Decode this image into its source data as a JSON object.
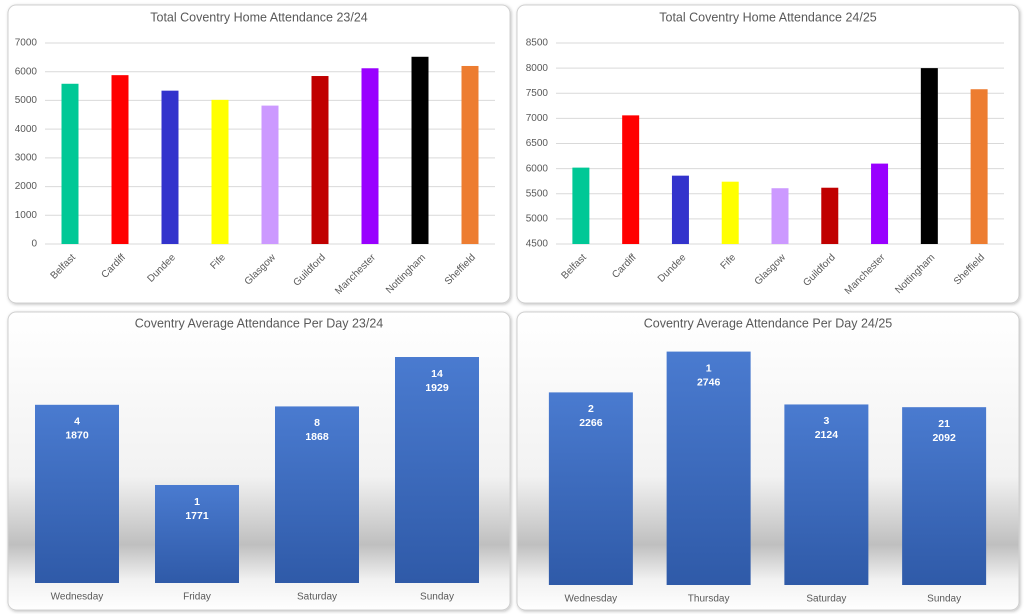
{
  "chart_data": [
    {
      "type": "bar",
      "title": "Total Coventry Home Attendance 23/24",
      "categories": [
        "Belfast",
        "Cardiff",
        "Dundee",
        "Fife",
        "Glasgow",
        "Guildford",
        "Manchester",
        "Nottingham",
        "Sheffield"
      ],
      "values": [
        5580,
        5880,
        5340,
        5020,
        4820,
        5850,
        6120,
        6520,
        6200
      ],
      "colors": [
        "#00c896",
        "#ff0000",
        "#3333cc",
        "#ffff00",
        "#cc99ff",
        "#c00000",
        "#9900ff",
        "#000000",
        "#ed7d31"
      ],
      "ylim": [
        0,
        7000
      ],
      "yticks": [
        0,
        1000,
        2000,
        3000,
        4000,
        5000,
        6000,
        7000
      ],
      "grid": true
    },
    {
      "type": "bar",
      "title": "Total Coventry Home Attendance 24/25",
      "categories": [
        "Belfast",
        "Cardiff",
        "Dundee",
        "Fife",
        "Glasgow",
        "Guildford",
        "Manchester",
        "Nottingham",
        "Sheffield"
      ],
      "values": [
        6020,
        7060,
        5860,
        5740,
        5610,
        5620,
        6100,
        8000,
        7580
      ],
      "colors": [
        "#00c896",
        "#ff0000",
        "#3333cc",
        "#ffff00",
        "#cc99ff",
        "#c00000",
        "#9900ff",
        "#000000",
        "#ed7d31"
      ],
      "ylim": [
        4500,
        8500
      ],
      "yticks": [
        4500,
        5000,
        5500,
        6000,
        6500,
        7000,
        7500,
        8000,
        8500
      ],
      "grid": true
    },
    {
      "type": "labeled-bar",
      "title": "Coventry Average Attendance Per Day 23/24",
      "categories": [
        "Wednesday",
        "Friday",
        "Saturday",
        "Sunday"
      ],
      "counts": [
        4,
        1,
        8,
        14
      ],
      "values": [
        1870,
        1771,
        1868,
        1929
      ],
      "color": "#4472c4",
      "ylim": [
        1650,
        1950
      ]
    },
    {
      "type": "labeled-bar",
      "title": "Coventry Average Attendance Per Day 24/25",
      "categories": [
        "Wednesday",
        "Thursday",
        "Saturday",
        "Sunday"
      ],
      "counts": [
        2,
        1,
        3,
        21
      ],
      "values": [
        2266,
        2746,
        2124,
        2092
      ],
      "color": "#4472c4",
      "ylim": [
        0,
        3000
      ]
    }
  ]
}
